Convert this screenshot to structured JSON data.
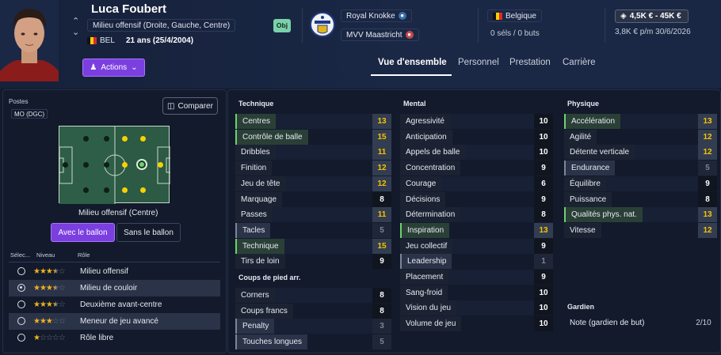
{
  "player": {
    "name": "Luca Foubert",
    "positions": "Milieu offensif (Droite, Gauche, Centre)",
    "nationality_code": "BEL",
    "age": "21 ans (25/4/2004)",
    "obj_badge": "Obj"
  },
  "clubs": {
    "club": "Royal Knokke",
    "loan_club": "MVV Maastricht",
    "country": "Belgique",
    "caps": "0 séls / 0 buts"
  },
  "finance": {
    "value": "4,5K € - 45K €",
    "contract": "3,8K € p/m 30/6/2026"
  },
  "header": {
    "actions_label": "Actions",
    "tabs": [
      "Vue d'ensemble",
      "Personnel",
      "Prestation",
      "Carrière"
    ]
  },
  "left": {
    "postes_label": "Postes",
    "postes_value": "MO (DGC)",
    "compare_label": "Comparer",
    "pitch_caption": "Milieu offensif (Centre)",
    "with_ball": "Avec le ballon",
    "without_ball": "Sans le ballon",
    "role_headers": {
      "select": "Sélec...",
      "level": "Niveau",
      "role": "Rôle"
    },
    "roles": [
      {
        "name": "Milieu offensif",
        "stars": 3.5,
        "selected": false
      },
      {
        "name": "Milieu de couloir",
        "stars": 3.5,
        "selected": true
      },
      {
        "name": "Deuxième avant-centre",
        "stars": 3.5,
        "selected": false
      },
      {
        "name": "Meneur de jeu avancé",
        "stars": 3,
        "selected": false
      },
      {
        "name": "Rôle libre",
        "stars": 1,
        "selected": false
      }
    ]
  },
  "attributes": {
    "technique": {
      "title": "Technique",
      "rows": [
        {
          "name": "Centres",
          "value": "13"
        },
        {
          "name": "Contrôle de balle",
          "value": "15"
        },
        {
          "name": "Dribbles",
          "value": "11"
        },
        {
          "name": "Finition",
          "value": "12"
        },
        {
          "name": "Jeu de tête",
          "value": "12"
        },
        {
          "name": "Marquage",
          "value": "8"
        },
        {
          "name": "Passes",
          "value": "11"
        },
        {
          "name": "Tacles",
          "value": "5"
        },
        {
          "name": "Technique",
          "value": "15"
        },
        {
          "name": "Tirs de loin",
          "value": "9"
        }
      ]
    },
    "set_pieces": {
      "title": "Coups de pied arr.",
      "rows": [
        {
          "name": "Corners",
          "value": "8"
        },
        {
          "name": "Coups francs",
          "value": "8"
        },
        {
          "name": "Penalty",
          "value": "3"
        },
        {
          "name": "Touches longues",
          "value": "5"
        }
      ]
    },
    "mental": {
      "title": "Mental",
      "rows": [
        {
          "name": "Agressivité",
          "value": "10"
        },
        {
          "name": "Anticipation",
          "value": "10"
        },
        {
          "name": "Appels de balle",
          "value": "10"
        },
        {
          "name": "Concentration",
          "value": "9"
        },
        {
          "name": "Courage",
          "value": "6"
        },
        {
          "name": "Décisions",
          "value": "9"
        },
        {
          "name": "Détermination",
          "value": "8"
        },
        {
          "name": "Inspiration",
          "value": "13"
        },
        {
          "name": "Jeu collectif",
          "value": "9"
        },
        {
          "name": "Leadership",
          "value": "1"
        },
        {
          "name": "Placement",
          "value": "9"
        },
        {
          "name": "Sang-froid",
          "value": "10"
        },
        {
          "name": "Vision du jeu",
          "value": "10"
        },
        {
          "name": "Volume de jeu",
          "value": "10"
        }
      ]
    },
    "physical": {
      "title": "Physique",
      "rows": [
        {
          "name": "Accélération",
          "value": "13"
        },
        {
          "name": "Agilité",
          "value": "12"
        },
        {
          "name": "Détente verticale",
          "value": "12"
        },
        {
          "name": "Endurance",
          "value": "5"
        },
        {
          "name": "Équilibre",
          "value": "9"
        },
        {
          "name": "Puissance",
          "value": "8"
        },
        {
          "name": "Qualités phys. nat.",
          "value": "13"
        },
        {
          "name": "Vitesse",
          "value": "12"
        }
      ]
    },
    "goalkeeper": {
      "title": "Gardien",
      "rows": [
        {
          "name": "Note (gardien de but)",
          "value": "2/10"
        }
      ]
    }
  }
}
